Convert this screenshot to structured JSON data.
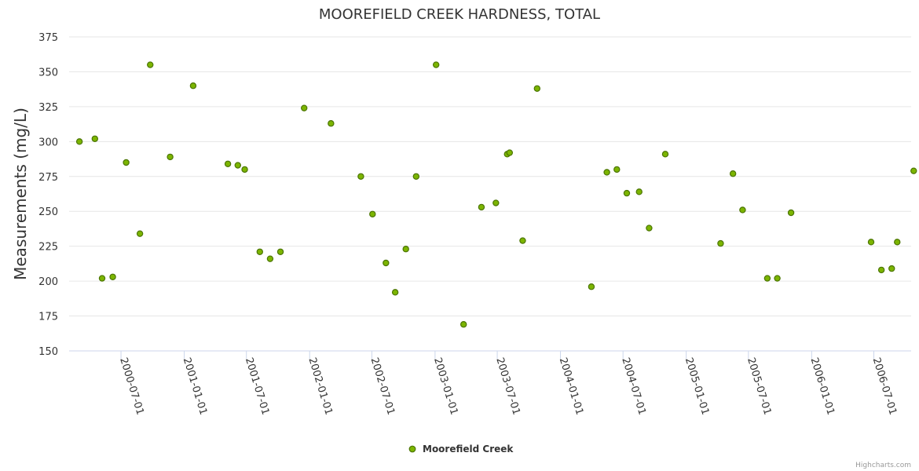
{
  "chart_data": {
    "type": "scatter",
    "title": "MOOREFIELD CREEK HARDNESS, TOTAL",
    "ylabel": "Measurements (mg/L)",
    "xlabel": "",
    "ylim": [
      150,
      375
    ],
    "yticks": [
      150,
      175,
      200,
      225,
      250,
      275,
      300,
      325,
      350,
      375
    ],
    "xlim": [
      "2000-02-17",
      "2006-10-25"
    ],
    "xticks": [
      "2000-07-01",
      "2001-01-01",
      "2001-07-01",
      "2002-01-01",
      "2002-07-01",
      "2003-01-01",
      "2003-07-01",
      "2004-01-01",
      "2004-07-01",
      "2005-01-01",
      "2005-07-01",
      "2006-01-01",
      "2006-07-01"
    ],
    "grid": true,
    "legend_position": "bottom-center",
    "series": [
      {
        "name": "Moorefield Creek",
        "color": "#7cb500",
        "edge_color": "#4a7400",
        "points": [
          [
            "2000-03-02",
            300
          ],
          [
            "2000-04-16",
            302
          ],
          [
            "2000-05-07",
            202
          ],
          [
            "2000-06-07",
            203
          ],
          [
            "2000-07-16",
            285
          ],
          [
            "2000-08-25",
            234
          ],
          [
            "2000-09-24",
            355
          ],
          [
            "2000-11-21",
            289
          ],
          [
            "2001-01-27",
            340
          ],
          [
            "2001-05-08",
            284
          ],
          [
            "2001-06-06",
            283
          ],
          [
            "2001-06-26",
            280
          ],
          [
            "2001-08-09",
            221
          ],
          [
            "2001-09-08",
            216
          ],
          [
            "2001-10-08",
            221
          ],
          [
            "2001-12-16",
            324
          ],
          [
            "2002-03-04",
            313
          ],
          [
            "2002-05-30",
            275
          ],
          [
            "2002-07-03",
            248
          ],
          [
            "2002-08-11",
            213
          ],
          [
            "2002-09-07",
            192
          ],
          [
            "2002-10-08",
            223
          ],
          [
            "2002-11-07",
            275
          ],
          [
            "2003-01-04",
            355
          ],
          [
            "2003-03-25",
            169
          ],
          [
            "2003-05-16",
            253
          ],
          [
            "2003-06-27",
            256
          ],
          [
            "2003-07-30",
            291
          ],
          [
            "2003-08-06",
            292
          ],
          [
            "2003-09-13",
            229
          ],
          [
            "2003-10-25",
            338
          ],
          [
            "2004-03-31",
            196
          ],
          [
            "2004-05-15",
            278
          ],
          [
            "2004-06-13",
            280
          ],
          [
            "2004-07-12",
            263
          ],
          [
            "2004-08-17",
            264
          ],
          [
            "2004-09-15",
            238
          ],
          [
            "2004-11-01",
            291
          ],
          [
            "2005-04-11",
            227
          ],
          [
            "2005-05-17",
            277
          ],
          [
            "2005-06-14",
            251
          ],
          [
            "2005-08-25",
            202
          ],
          [
            "2005-09-23",
            202
          ],
          [
            "2005-11-02",
            249
          ],
          [
            "2006-06-23",
            228
          ],
          [
            "2006-07-23",
            208
          ],
          [
            "2006-08-22",
            209
          ],
          [
            "2006-09-07",
            228
          ],
          [
            "2006-10-25",
            279
          ]
        ]
      }
    ],
    "credits": "Highcharts.com"
  }
}
